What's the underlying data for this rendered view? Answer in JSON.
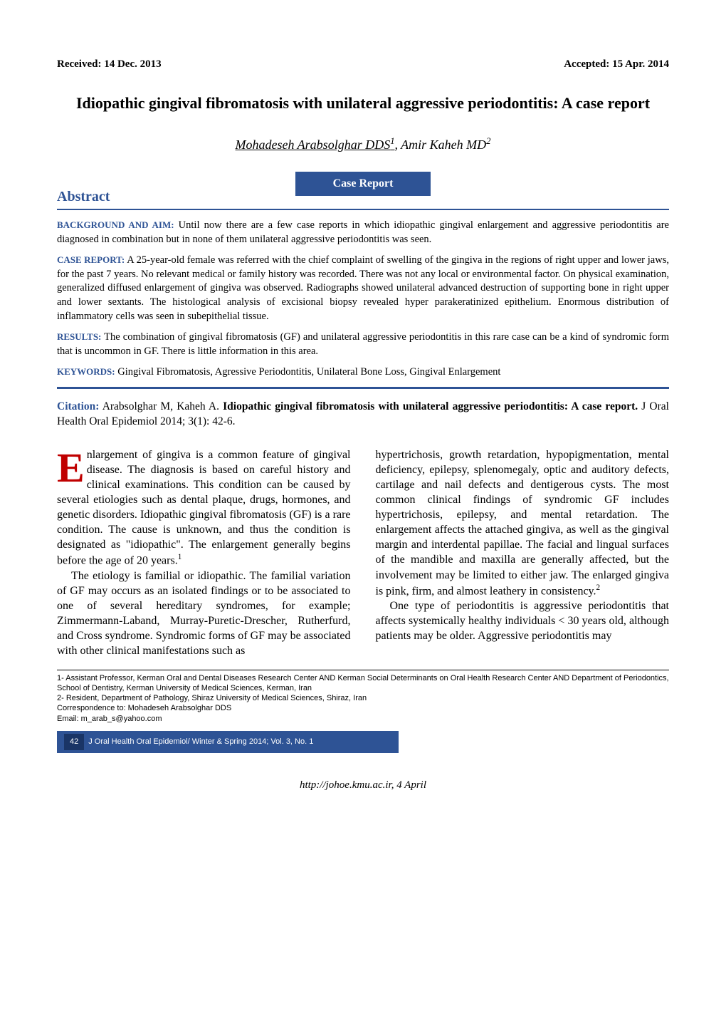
{
  "header": {
    "received": "Received: 14 Dec. 2013",
    "accepted": "Accepted: 15 Apr. 2014"
  },
  "title": "Idiopathic gingival fibromatosis with unilateral aggressive periodontitis: A case report",
  "authors": {
    "main": "Mohadeseh Arabsolghar DDS",
    "main_sup": "1",
    "second": ", Amir Kaheh MD",
    "second_sup": "2"
  },
  "badge": "Case Report",
  "abstract_heading": "Abstract",
  "abstract": {
    "background_label": "BACKGROUND AND AIM:",
    "background_text": " Until now there are a few case reports in which idiopathic gingival enlargement and aggressive periodontitis are diagnosed in combination but in none of them unilateral aggressive periodontitis was seen.",
    "case_label": "CASE REPORT:",
    "case_text": " A 25-year-old female was referred with the chief complaint of swelling of the gingiva in the regions of right upper and lower jaws, for the past 7 years. No relevant medical or family history was recorded. There was not any local or environmental factor. On physical examination, generalized diffused enlargement of gingiva was observed. Radiographs showed unilateral advanced destruction of supporting bone in right upper and lower sextants. The histological analysis of excisional biopsy revealed hyper parakeratinized epithelium. Enormous distribution of inflammatory cells was seen in subepithelial tissue.",
    "results_label": "RESULTS:",
    "results_text": " The combination of gingival fibromatosis (GF) and unilateral aggressive periodontitis in this rare case can be a kind of syndromic form that is uncommon in GF. There is little information in this area.",
    "keywords_label": "KEYWORDS:",
    "keywords_text": " Gingival Fibromatosis, Agressive Periodontitis, Unilateral Bone Loss, Gingival Enlargement"
  },
  "citation": {
    "label": "Citation:",
    "authors": " Arabsolghar M, Kaheh A. ",
    "title": "Idiopathic gingival fibromatosis with unilateral aggressive periodontitis: A case report.",
    "rest": " J Oral Health Oral Epidemiol 2014; 3(1): 42-6."
  },
  "body": {
    "col1": {
      "dropcap": "E",
      "p1_rest": "nlargement of gingiva is a common feature of gingival disease. The diagnosis is based on careful history and clinical examinations. This condition can be caused by several etiologies such as dental plaque, drugs, hormones, and genetic disorders. Idiopathic gingival fibromatosis (GF) is a rare condition. The cause is unknown, and thus the condition is designated as \"idiopathic\". The enlargement generally begins before the age of 20 years.",
      "p1_sup": "1",
      "p2": "The etiology is familial or idiopathic. The familial variation of GF may occurs as an isolated findings or to be associated to one of several hereditary syndromes, for example; Zimmermann-Laband, Murray-Puretic-Drescher, Rutherfurd, and Cross syndrome. Syndromic forms of GF may be associated with other clinical manifestations such as"
    },
    "col2": {
      "p1": "hypertrichosis, growth retardation, hypopigmentation, mental deficiency, epilepsy, splenomegaly, optic and auditory defects, cartilage and nail defects and dentigerous cysts. The most common clinical findings of syndromic GF includes hypertrichosis, epilepsy, and mental retardation. The enlargement affects the attached gingiva, as well as the gingival margin and interdental papillae. The facial and lingual surfaces of the mandible and maxilla are generally affected, but the involvement may be limited to either jaw. The enlarged gingiva is pink, firm, and almost leathery in consistency.",
      "p1_sup": "2",
      "p2": "One type of periodontitis is aggressive periodontitis that affects systemically healthy individuals < 30 years old, although patients may be older. Aggressive periodontitis may"
    }
  },
  "footnotes": {
    "f1": "1- Assistant Professor, Kerman Oral and Dental Diseases Research Center AND Kerman Social Determinants on Oral Health Research Center AND Department of Periodontics, School of Dentistry, Kerman University of Medical Sciences, Kerman, Iran",
    "f2": "2- Resident, Department of Pathology, Shiraz University of Medical Sciences, Shiraz, Iran",
    "corr": "Correspondence to: Mohadeseh Arabsolghar DDS",
    "email": "Email: m_arab_s@yahoo.com"
  },
  "footer_bar": {
    "page": "42",
    "text": "J Oral Health Oral Epidemiol/ Winter & Spring 2014; Vol. 3, No. 1"
  },
  "url_footer": "http://johoe.kmu.ac.ir,    4 April"
}
